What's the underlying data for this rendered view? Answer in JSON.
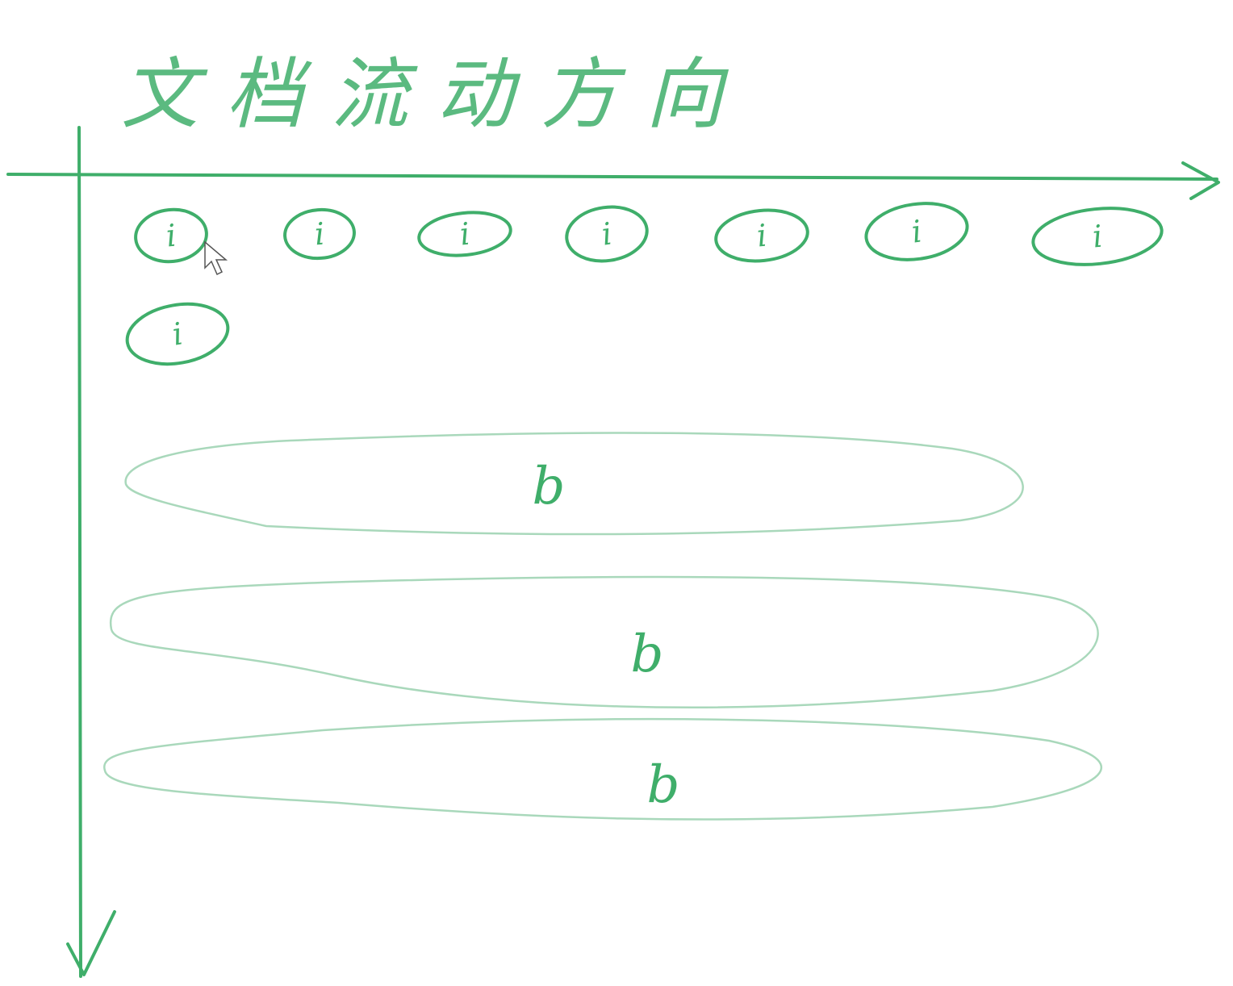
{
  "title": "文档流动方向",
  "colors": {
    "ink": "#3fae6a",
    "ink_light": "#a9d8bb",
    "cursor_fill": "#ffffff",
    "cursor_stroke": "#555555"
  },
  "inline_elements": [
    {
      "label": "i"
    },
    {
      "label": "i"
    },
    {
      "label": "i"
    },
    {
      "label": "i"
    },
    {
      "label": "i"
    },
    {
      "label": "i"
    },
    {
      "label": "i"
    },
    {
      "label": "i"
    }
  ],
  "block_elements": [
    {
      "label": "b"
    },
    {
      "label": "b"
    },
    {
      "label": "b"
    }
  ]
}
